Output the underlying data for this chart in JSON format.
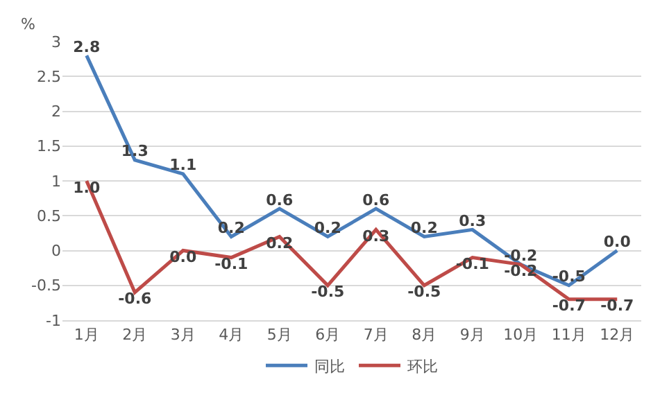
{
  "chart_data": {
    "type": "line",
    "ylabel": "%",
    "categories": [
      "1月",
      "2月",
      "3月",
      "4月",
      "5月",
      "6月",
      "7月",
      "8月",
      "9月",
      "10月",
      "11月",
      "12月"
    ],
    "series": [
      {
        "name": "同比",
        "color": "#4a7ebb",
        "values": [
          2.8,
          1.3,
          1.1,
          0.2,
          0.6,
          0.2,
          0.6,
          0.2,
          0.3,
          -0.2,
          -0.5,
          0.0
        ],
        "value_labels": [
          "2.8",
          "1.3",
          "1.1",
          "0.2",
          "0.6",
          "0.2",
          "0.6",
          "0.2",
          "0.3",
          "-0.2",
          "-0.5",
          "0.0"
        ]
      },
      {
        "name": "环比",
        "color": "#be4b48",
        "values": [
          1.0,
          -0.6,
          0.0,
          -0.1,
          0.2,
          -0.5,
          0.3,
          -0.5,
          -0.1,
          -0.2,
          -0.7,
          -0.7
        ],
        "value_labels": [
          "1.0",
          "-0.6",
          "0.0",
          "-0.1",
          "0.2",
          "-0.5",
          "0.3",
          "-0.5",
          "-0.1",
          "-0.2",
          "-0.7",
          "-0.7"
        ]
      }
    ],
    "ylim": [
      -1,
      3
    ],
    "yticks": [
      -1,
      -0.5,
      0,
      0.5,
      1,
      1.5,
      2,
      2.5,
      3
    ],
    "grid": "y",
    "legend": "bottom",
    "marker": "none",
    "line_style": "solid"
  }
}
